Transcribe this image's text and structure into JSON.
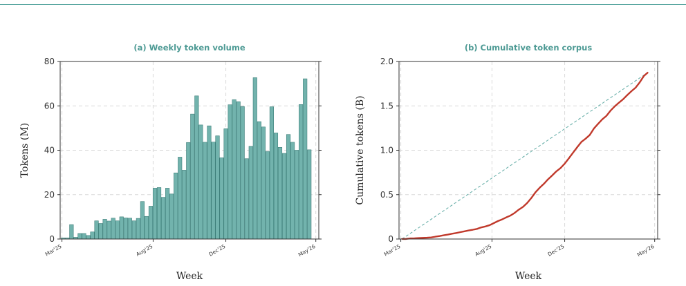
{
  "colors": {
    "rule": "#5aa7a1",
    "title": "#4d9a94",
    "bar_fill": "#72b3ad",
    "bar_edge": "#3f7f7a",
    "cum_line": "#c0392b",
    "ref_line": "#6ab0aa"
  },
  "chart_data": [
    {
      "type": "bar",
      "title": "(a) Weekly token volume",
      "xlabel": "Week",
      "ylabel": "Tokens (M)",
      "ylim": [
        0,
        80
      ],
      "yticks": [
        0,
        20,
        40,
        60,
        80
      ],
      "xlim": [
        "2025-02-26",
        "2026-05-06"
      ],
      "xticks": [
        {
          "date": "2025-03-01",
          "label": "Mar'25"
        },
        {
          "date": "2025-08-01",
          "label": "Aug'25"
        },
        {
          "date": "2025-12-01",
          "label": "Dec'25"
        },
        {
          "date": "2026-05-01",
          "label": "May'26"
        }
      ],
      "grid": true,
      "start_date": "2025-03-03",
      "interval_days": 7,
      "values": [
        0.5,
        0.5,
        6.5,
        0.8,
        2.5,
        2.5,
        1.6,
        3.2,
        8.2,
        7,
        8.9,
        8.1,
        9.4,
        8.2,
        10,
        9.5,
        9.4,
        8.2,
        9.3,
        16.9,
        10.2,
        14.8,
        22.9,
        23.2,
        18.8,
        22.9,
        20.3,
        29.8,
        36.9,
        31,
        43.5,
        56.3,
        64.5,
        51.4,
        43.6,
        51,
        43.7,
        46.5,
        36.6,
        49.7,
        60.5,
        62.8,
        61.9,
        59.7,
        36.2,
        41.8,
        72.7,
        52.9,
        50.5,
        39.4,
        59.6,
        47.8,
        41.3,
        38.6,
        47.1,
        43.6,
        40,
        60.6,
        72.2,
        40.2
      ]
    },
    {
      "type": "line",
      "title": "(b) Cumulative token corpus",
      "xlabel": "Week",
      "ylabel": "Cumulative tokens (B)",
      "ylim": [
        0,
        2.0
      ],
      "yticks": [
        0,
        0.5,
        1.0,
        1.5,
        2.0
      ],
      "ytick_labels": [
        "0",
        "0.5",
        "1.0",
        "1.5",
        "2.0"
      ],
      "xlim": [
        "2025-02-26",
        "2026-05-06"
      ],
      "xticks": [
        {
          "date": "2025-03-01",
          "label": "Mar'25"
        },
        {
          "date": "2025-08-01",
          "label": "Aug'25"
        },
        {
          "date": "2025-12-01",
          "label": "Dec'25"
        },
        {
          "date": "2026-05-01",
          "label": "May'26"
        }
      ],
      "grid": true,
      "series": [
        {
          "role": "cumulative sum of weekly volume (B)",
          "line_style": "solid"
        },
        {
          "role": "linear reference from 0 to final total",
          "line_style": "dashed"
        }
      ]
    }
  ]
}
